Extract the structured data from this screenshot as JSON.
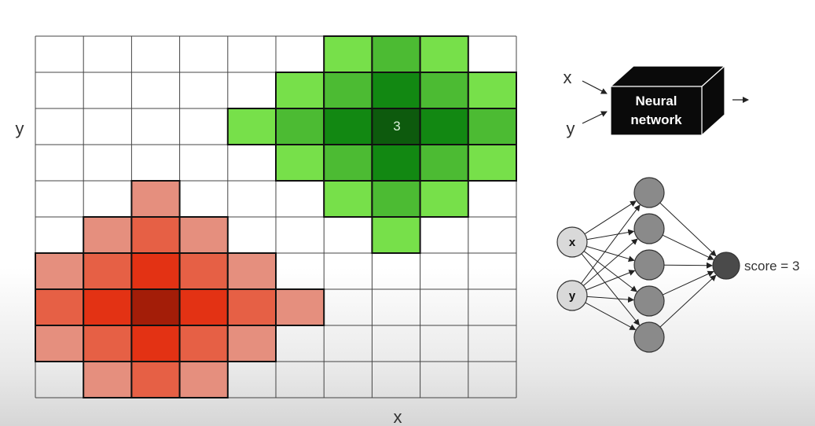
{
  "grid": {
    "cols": 10,
    "rows": 10,
    "x_label": "x",
    "y_label": "y",
    "green_cluster": {
      "center_col": 7,
      "center_row": 2,
      "center_label": "3",
      "colors": {
        "center": "#0d5a0d",
        "ring1": "#128812",
        "ring2": "#4cbb33",
        "ring3": "#77e04a"
      }
    },
    "red_cluster": {
      "center_col": 2,
      "center_row": 7,
      "colors": {
        "center": "#a31d08",
        "ring1": "#e33214",
        "ring2": "#e66045",
        "ring3": "#e58f7e"
      }
    }
  },
  "black_box": {
    "line1": "Neural",
    "line2": "network",
    "input_x": "x",
    "input_y": "y"
  },
  "network": {
    "inputs": [
      "x",
      "y"
    ],
    "hidden_count": 5,
    "output_label": "score = 3"
  }
}
